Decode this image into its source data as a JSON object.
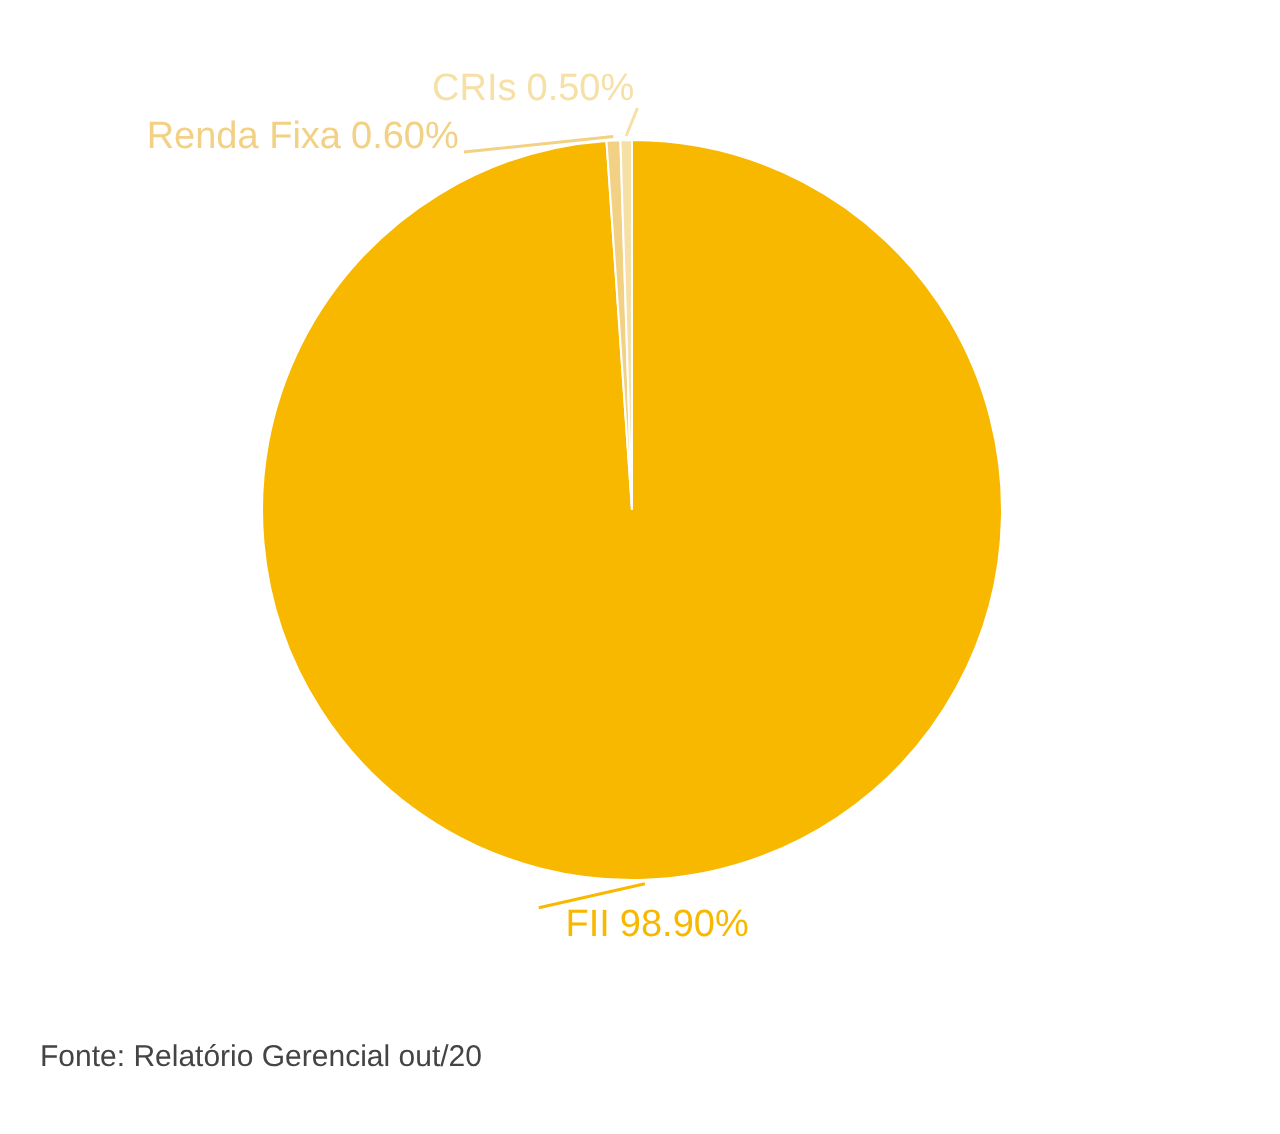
{
  "chart_data": {
    "type": "pie",
    "categories": [
      "FII",
      "Renda Fixa",
      "CRIs"
    ],
    "values": [
      98.9,
      0.6,
      0.5
    ],
    "colors": [
      "#f9b800",
      "#f2d184",
      "#f6e0a6"
    ],
    "value_labels": [
      "98.90%",
      "0.60%",
      "0.50%"
    ],
    "legend": false,
    "annotations": [
      "Fonte: Relatório Gerencial out/20"
    ]
  }
}
